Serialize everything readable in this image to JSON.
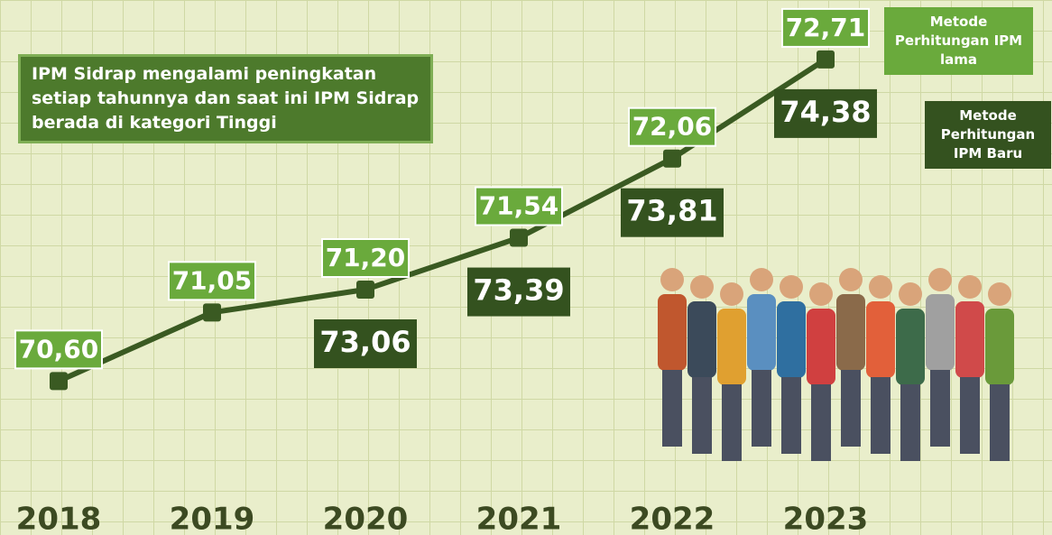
{
  "chart_data": {
    "type": "line",
    "annotation": "IPM Sidrap mengalami peningkatan setiap tahunnya dan saat ini IPM Sidrap berada di kategori Tinggi",
    "categories": [
      "2018",
      "2019",
      "2020",
      "2021",
      "2022",
      "2023"
    ],
    "ylim": [
      69.59,
      73.1
    ],
    "series": [
      {
        "name": "Metode Perhitungan IPM lama",
        "color": "#6aaa3c",
        "values": [
          70.6,
          71.05,
          71.2,
          71.54,
          72.06,
          72.71
        ],
        "value_labels": [
          "70,60",
          "71,05",
          "71,20",
          "71,54",
          "72,06",
          "72,71"
        ]
      },
      {
        "name": "Metode Perhitungan IPM Baru",
        "color": "#34521f",
        "values": [
          null,
          null,
          73.06,
          73.39,
          73.81,
          74.38
        ],
        "value_labels": [
          null,
          null,
          "73,06",
          "73,39",
          "73,81",
          "74,38"
        ]
      }
    ]
  }
}
